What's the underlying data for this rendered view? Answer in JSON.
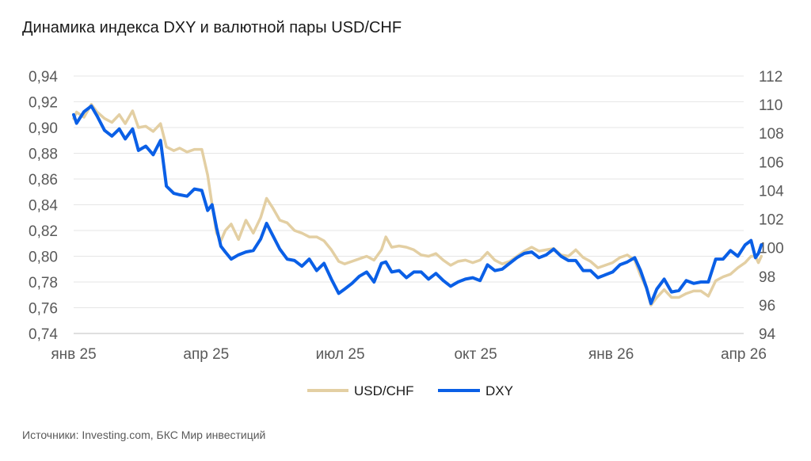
{
  "title": "Динамика индекса DXY и валютной пары USD/CHF",
  "source": "Источники: Investing.com, БКС Мир инвестиций",
  "chart_data": {
    "type": "line",
    "grid": true,
    "legend_position": "bottom",
    "left_axis": {
      "ylim": [
        0.74,
        0.94
      ],
      "ticks": [
        "0,74",
        "0,76",
        "0,78",
        "0,80",
        "0,82",
        "0,84",
        "0,86",
        "0,88",
        "0,90",
        "0,92",
        "0,94"
      ]
    },
    "right_axis": {
      "ylim": [
        94,
        112
      ],
      "ticks": [
        "94",
        "96",
        "98",
        "100",
        "102",
        "104",
        "106",
        "108",
        "110",
        "112"
      ]
    },
    "x_ticks": [
      "янв 25",
      "апр 25",
      "июл 25",
      "окт 25",
      "янв 26",
      "апр 26"
    ],
    "x_tick_dates": [
      "2025-01-01",
      "2025-04-01",
      "2025-07-01",
      "2025-10-01",
      "2026-01-01",
      "2026-04-01"
    ],
    "series": [
      {
        "name": "USD/CHF",
        "axis": "left",
        "color": "#e3cfa3",
        "points": [
          [
            "2025-01-01",
            0.907
          ],
          [
            "2025-01-03",
            0.912
          ],
          [
            "2025-01-08",
            0.908
          ],
          [
            "2025-01-13",
            0.918
          ],
          [
            "2025-01-17",
            0.912
          ],
          [
            "2025-01-22",
            0.907
          ],
          [
            "2025-01-27",
            0.904
          ],
          [
            "2025-02-01",
            0.91
          ],
          [
            "2025-02-05",
            0.903
          ],
          [
            "2025-02-10",
            0.913
          ],
          [
            "2025-02-14",
            0.9
          ],
          [
            "2025-02-19",
            0.901
          ],
          [
            "2025-02-24",
            0.897
          ],
          [
            "2025-03-01",
            0.903
          ],
          [
            "2025-03-05",
            0.885
          ],
          [
            "2025-03-10",
            0.882
          ],
          [
            "2025-03-14",
            0.884
          ],
          [
            "2025-03-19",
            0.881
          ],
          [
            "2025-03-24",
            0.883
          ],
          [
            "2025-03-29",
            0.883
          ],
          [
            "2025-04-02",
            0.863
          ],
          [
            "2025-04-05",
            0.84
          ],
          [
            "2025-04-08",
            0.818
          ],
          [
            "2025-04-11",
            0.812
          ],
          [
            "2025-04-14",
            0.82
          ],
          [
            "2025-04-18",
            0.825
          ],
          [
            "2025-04-23",
            0.813
          ],
          [
            "2025-04-28",
            0.828
          ],
          [
            "2025-05-03",
            0.818
          ],
          [
            "2025-05-08",
            0.83
          ],
          [
            "2025-05-12",
            0.845
          ],
          [
            "2025-05-16",
            0.838
          ],
          [
            "2025-05-21",
            0.828
          ],
          [
            "2025-05-26",
            0.826
          ],
          [
            "2025-05-31",
            0.82
          ],
          [
            "2025-06-05",
            0.818
          ],
          [
            "2025-06-10",
            0.815
          ],
          [
            "2025-06-15",
            0.815
          ],
          [
            "2025-06-20",
            0.812
          ],
          [
            "2025-06-25",
            0.805
          ],
          [
            "2025-06-30",
            0.796
          ],
          [
            "2025-07-04",
            0.794
          ],
          [
            "2025-07-09",
            0.796
          ],
          [
            "2025-07-14",
            0.798
          ],
          [
            "2025-07-19",
            0.8
          ],
          [
            "2025-07-24",
            0.797
          ],
          [
            "2025-07-29",
            0.805
          ],
          [
            "2025-08-01",
            0.815
          ],
          [
            "2025-08-05",
            0.807
          ],
          [
            "2025-08-10",
            0.808
          ],
          [
            "2025-08-15",
            0.807
          ],
          [
            "2025-08-20",
            0.805
          ],
          [
            "2025-08-25",
            0.801
          ],
          [
            "2025-08-30",
            0.8
          ],
          [
            "2025-09-04",
            0.802
          ],
          [
            "2025-09-09",
            0.797
          ],
          [
            "2025-09-14",
            0.793
          ],
          [
            "2025-09-19",
            0.796
          ],
          [
            "2025-09-24",
            0.797
          ],
          [
            "2025-09-29",
            0.795
          ],
          [
            "2025-10-04",
            0.797
          ],
          [
            "2025-10-09",
            0.803
          ],
          [
            "2025-10-14",
            0.797
          ],
          [
            "2025-10-19",
            0.794
          ],
          [
            "2025-10-24",
            0.796
          ],
          [
            "2025-10-29",
            0.8
          ],
          [
            "2025-11-03",
            0.804
          ],
          [
            "2025-11-08",
            0.807
          ],
          [
            "2025-11-13",
            0.804
          ],
          [
            "2025-11-18",
            0.805
          ],
          [
            "2025-11-23",
            0.806
          ],
          [
            "2025-11-28",
            0.801
          ],
          [
            "2025-12-03",
            0.8
          ],
          [
            "2025-12-08",
            0.805
          ],
          [
            "2025-12-13",
            0.799
          ],
          [
            "2025-12-18",
            0.796
          ],
          [
            "2025-12-23",
            0.791
          ],
          [
            "2025-12-28",
            0.793
          ],
          [
            "2026-01-02",
            0.795
          ],
          [
            "2026-01-07",
            0.799
          ],
          [
            "2026-01-12",
            0.801
          ],
          [
            "2026-01-17",
            0.797
          ],
          [
            "2026-01-21",
            0.785
          ],
          [
            "2026-01-25",
            0.775
          ],
          [
            "2026-01-28",
            0.762
          ],
          [
            "2026-02-01",
            0.768
          ],
          [
            "2026-02-06",
            0.774
          ],
          [
            "2026-02-11",
            0.768
          ],
          [
            "2026-02-16",
            0.768
          ],
          [
            "2026-02-21",
            0.771
          ],
          [
            "2026-02-26",
            0.773
          ],
          [
            "2026-03-03",
            0.773
          ],
          [
            "2026-03-08",
            0.769
          ],
          [
            "2026-03-13",
            0.781
          ],
          [
            "2026-03-18",
            0.784
          ],
          [
            "2026-03-23",
            0.786
          ],
          [
            "2026-03-28",
            0.791
          ],
          [
            "2026-04-02",
            0.795
          ],
          [
            "2026-04-06",
            0.8
          ],
          [
            "2026-04-09",
            0.8
          ],
          [
            "2026-04-11",
            0.795
          ],
          [
            "2026-04-13",
            0.8
          ]
        ]
      },
      {
        "name": "DXY",
        "axis": "right",
        "color": "#0a5fe6",
        "points": [
          [
            "2025-01-01",
            109.3
          ],
          [
            "2025-01-03",
            108.7
          ],
          [
            "2025-01-08",
            109.5
          ],
          [
            "2025-01-13",
            109.9
          ],
          [
            "2025-01-17",
            109.2
          ],
          [
            "2025-01-22",
            108.2
          ],
          [
            "2025-01-27",
            107.8
          ],
          [
            "2025-02-01",
            108.3
          ],
          [
            "2025-02-05",
            107.6
          ],
          [
            "2025-02-10",
            108.3
          ],
          [
            "2025-02-14",
            106.8
          ],
          [
            "2025-02-19",
            107.1
          ],
          [
            "2025-02-24",
            106.5
          ],
          [
            "2025-03-01",
            107.5
          ],
          [
            "2025-03-05",
            104.3
          ],
          [
            "2025-03-10",
            103.8
          ],
          [
            "2025-03-14",
            103.7
          ],
          [
            "2025-03-19",
            103.6
          ],
          [
            "2025-03-24",
            104.1
          ],
          [
            "2025-03-29",
            104.0
          ],
          [
            "2025-04-02",
            102.6
          ],
          [
            "2025-04-05",
            103.0
          ],
          [
            "2025-04-08",
            101.4
          ],
          [
            "2025-04-11",
            100.1
          ],
          [
            "2025-04-14",
            99.7
          ],
          [
            "2025-04-18",
            99.2
          ],
          [
            "2025-04-23",
            99.5
          ],
          [
            "2025-04-28",
            99.7
          ],
          [
            "2025-05-03",
            99.8
          ],
          [
            "2025-05-08",
            100.6
          ],
          [
            "2025-05-12",
            101.7
          ],
          [
            "2025-05-16",
            100.9
          ],
          [
            "2025-05-21",
            99.9
          ],
          [
            "2025-05-26",
            99.2
          ],
          [
            "2025-05-31",
            99.1
          ],
          [
            "2025-06-05",
            98.7
          ],
          [
            "2025-06-10",
            99.2
          ],
          [
            "2025-06-15",
            98.4
          ],
          [
            "2025-06-20",
            98.9
          ],
          [
            "2025-06-25",
            97.8
          ],
          [
            "2025-06-30",
            96.8
          ],
          [
            "2025-07-04",
            97.1
          ],
          [
            "2025-07-09",
            97.5
          ],
          [
            "2025-07-14",
            98.0
          ],
          [
            "2025-07-19",
            98.3
          ],
          [
            "2025-07-24",
            97.6
          ],
          [
            "2025-07-29",
            98.9
          ],
          [
            "2025-08-01",
            99.0
          ],
          [
            "2025-08-05",
            98.3
          ],
          [
            "2025-08-10",
            98.4
          ],
          [
            "2025-08-15",
            97.9
          ],
          [
            "2025-08-20",
            98.3
          ],
          [
            "2025-08-25",
            98.3
          ],
          [
            "2025-08-30",
            97.8
          ],
          [
            "2025-09-04",
            98.2
          ],
          [
            "2025-09-09",
            97.7
          ],
          [
            "2025-09-14",
            97.3
          ],
          [
            "2025-09-19",
            97.6
          ],
          [
            "2025-09-24",
            97.8
          ],
          [
            "2025-09-29",
            97.9
          ],
          [
            "2025-10-04",
            97.7
          ],
          [
            "2025-10-09",
            98.8
          ],
          [
            "2025-10-14",
            98.4
          ],
          [
            "2025-10-19",
            98.5
          ],
          [
            "2025-10-24",
            98.9
          ],
          [
            "2025-10-29",
            99.3
          ],
          [
            "2025-11-03",
            99.6
          ],
          [
            "2025-11-08",
            99.7
          ],
          [
            "2025-11-13",
            99.3
          ],
          [
            "2025-11-18",
            99.5
          ],
          [
            "2025-11-23",
            99.9
          ],
          [
            "2025-11-28",
            99.4
          ],
          [
            "2025-12-03",
            99.1
          ],
          [
            "2025-12-08",
            99.1
          ],
          [
            "2025-12-13",
            98.4
          ],
          [
            "2025-12-18",
            98.4
          ],
          [
            "2025-12-23",
            97.9
          ],
          [
            "2025-12-28",
            98.1
          ],
          [
            "2026-01-02",
            98.3
          ],
          [
            "2026-01-07",
            98.8
          ],
          [
            "2026-01-12",
            99.0
          ],
          [
            "2026-01-17",
            99.3
          ],
          [
            "2026-01-21",
            98.4
          ],
          [
            "2026-01-25",
            97.2
          ],
          [
            "2026-01-28",
            96.1
          ],
          [
            "2026-02-01",
            97.1
          ],
          [
            "2026-02-06",
            97.8
          ],
          [
            "2026-02-11",
            96.9
          ],
          [
            "2026-02-16",
            97.0
          ],
          [
            "2026-02-21",
            97.7
          ],
          [
            "2026-02-26",
            97.5
          ],
          [
            "2026-03-03",
            97.6
          ],
          [
            "2026-03-08",
            97.6
          ],
          [
            "2026-03-13",
            99.2
          ],
          [
            "2026-03-18",
            99.2
          ],
          [
            "2026-03-23",
            99.8
          ],
          [
            "2026-03-28",
            99.4
          ],
          [
            "2026-04-02",
            100.2
          ],
          [
            "2026-04-06",
            100.5
          ],
          [
            "2026-04-09",
            99.3
          ],
          [
            "2026-04-11",
            99.6
          ],
          [
            "2026-04-13",
            100.2
          ]
        ]
      }
    ]
  }
}
